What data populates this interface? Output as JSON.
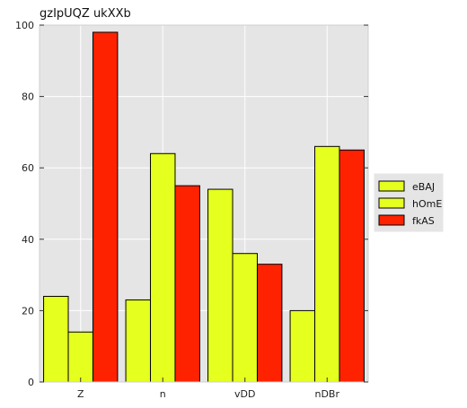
{
  "chart_data": {
    "type": "bar",
    "title": "gzIpUQZ ukXXb",
    "xlabel": "",
    "ylabel": "",
    "categories": [
      "Z",
      "n",
      "vDD",
      "nDBr"
    ],
    "series": [
      {
        "name": "eBAJ",
        "values": [
          24,
          23,
          54,
          20
        ],
        "color": "#e5ff1f"
      },
      {
        "name": "hOmE",
        "values": [
          14,
          64,
          36,
          66
        ],
        "color": "#e5ff1f"
      },
      {
        "name": "fkAS",
        "values": [
          98,
          55,
          33,
          65
        ],
        "color": "#ff2200"
      }
    ],
    "ylim": [
      0,
      100
    ],
    "yticks": [
      0,
      20,
      40,
      60,
      80,
      100
    ],
    "grid": true,
    "legend": "right"
  }
}
